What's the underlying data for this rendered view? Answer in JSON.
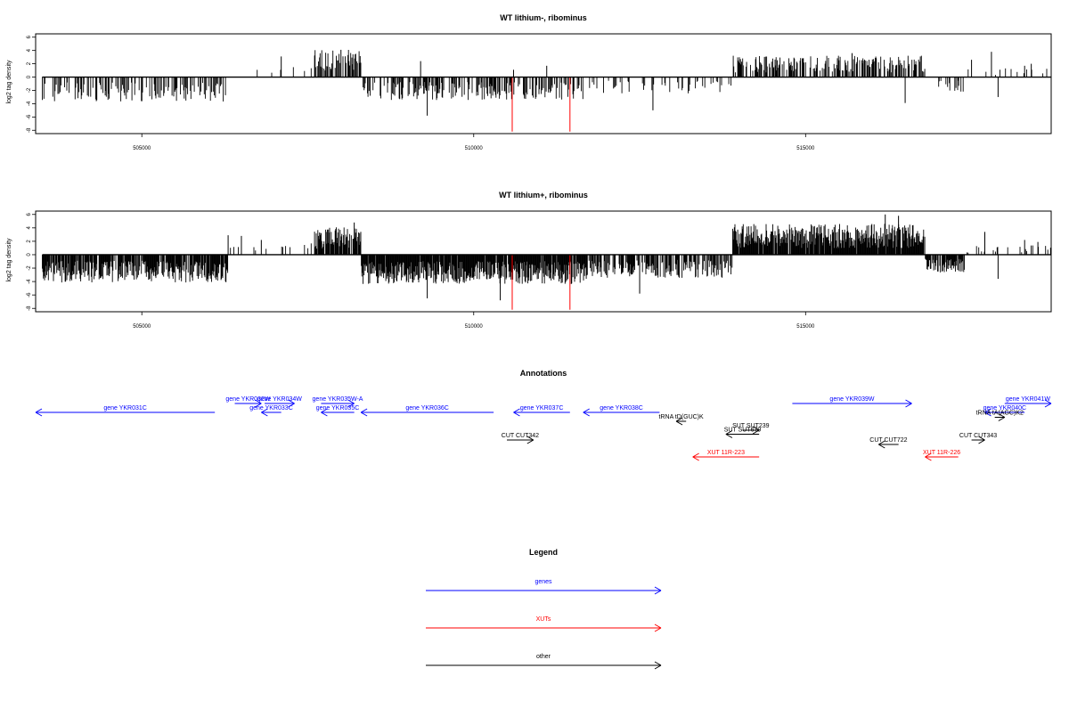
{
  "colors": {
    "gene": "#0000ff",
    "xut": "#ff0000",
    "other": "#000000",
    "highlight": "#ff0000",
    "frame": "#000000"
  },
  "chart_data": [
    {
      "type": "bar",
      "title": "WT lithium-, ribominus",
      "xlabel": "",
      "ylabel": "log2 tag density",
      "xlim": [
        503400,
        518700
      ],
      "ylim": [
        -8.5,
        6.5
      ],
      "xticks": [
        505000,
        510000,
        515000
      ],
      "yticks": [
        6,
        4,
        2,
        0,
        -2,
        -4,
        -6,
        -8
      ],
      "grid": false,
      "density": 0.62,
      "seed": 7,
      "regions": [
        {
          "x": [
            503500,
            506300
          ],
          "sign": -1,
          "mag": 3.2,
          "p": 0.55
        },
        {
          "x": [
            506300,
            507600
          ],
          "sign": 1,
          "mag": 1.5,
          "p": 0.06
        },
        {
          "x": [
            507600,
            508300
          ],
          "sign": 1,
          "mag": 3.6,
          "p": 0.8
        },
        {
          "x": [
            508300,
            511700
          ],
          "sign": -1,
          "mag": 3.0,
          "p": 0.65
        },
        {
          "x": [
            511700,
            513900
          ],
          "sign": -1,
          "mag": 2.2,
          "p": 0.28
        },
        {
          "x": [
            513900,
            516800
          ],
          "sign": 1,
          "mag": 2.8,
          "p": 0.75
        },
        {
          "x": [
            516800,
            517400
          ],
          "sign": -1,
          "mag": 2.0,
          "p": 0.35
        },
        {
          "x": [
            517400,
            518700
          ],
          "sign": 1,
          "mag": 1.2,
          "p": 0.12
        }
      ],
      "spikes": [
        {
          "x": 507100,
          "y": 3.1
        },
        {
          "x": 508000,
          "y": 4.1
        },
        {
          "x": 509200,
          "y": 2.4
        },
        {
          "x": 509300,
          "y": -5.8
        },
        {
          "x": 510600,
          "y": 1.1
        },
        {
          "x": 511100,
          "y": 1.7
        },
        {
          "x": 512700,
          "y": -5.0
        },
        {
          "x": 516500,
          "y": -3.9
        },
        {
          "x": 517500,
          "y": 2.6
        },
        {
          "x": 517800,
          "y": 3.8
        },
        {
          "x": 517900,
          "y": -3.0
        },
        {
          "x": 518300,
          "y": 1.7
        },
        {
          "x": 518400,
          "y": 2.0
        },
        {
          "x": 515700,
          "y": 3.6
        }
      ],
      "highlights": [
        {
          "x": 510580,
          "y": -8.2
        },
        {
          "x": 511450,
          "y": -8.2
        }
      ]
    },
    {
      "type": "bar",
      "title": "WT lithium+, ribominus",
      "xlabel": "",
      "ylabel": "log2 tag density",
      "xlim": [
        503400,
        518700
      ],
      "ylim": [
        -8.5,
        6.5
      ],
      "xticks": [
        505000,
        510000,
        515000
      ],
      "yticks": [
        6,
        4,
        2,
        0,
        -2,
        -4,
        -6,
        -8
      ],
      "grid": false,
      "density": 0.98,
      "seed": 23,
      "regions": [
        {
          "x": [
            503500,
            506300
          ],
          "sign": -1,
          "mag": 3.6,
          "p": 0.85
        },
        {
          "x": [
            506300,
            507600
          ],
          "sign": 1,
          "mag": 1.6,
          "p": 0.05
        },
        {
          "x": [
            507600,
            508300
          ],
          "sign": 1,
          "mag": 3.6,
          "p": 0.9
        },
        {
          "x": [
            508300,
            511700
          ],
          "sign": -1,
          "mag": 3.8,
          "p": 0.95
        },
        {
          "x": [
            511700,
            513900
          ],
          "sign": -1,
          "mag": 3.0,
          "p": 0.6
        },
        {
          "x": [
            513900,
            516800
          ],
          "sign": 1,
          "mag": 4.0,
          "p": 0.92
        },
        {
          "x": [
            516800,
            517400
          ],
          "sign": -1,
          "mag": 2.4,
          "p": 0.8
        },
        {
          "x": [
            517400,
            518700
          ],
          "sign": 1,
          "mag": 1.2,
          "p": 0.1
        }
      ],
      "spikes": [
        {
          "x": 506300,
          "y": 2.9
        },
        {
          "x": 506500,
          "y": 2.8
        },
        {
          "x": 506800,
          "y": 2.2
        },
        {
          "x": 507700,
          "y": 3.2
        },
        {
          "x": 508200,
          "y": 4.8
        },
        {
          "x": 509300,
          "y": -6.5
        },
        {
          "x": 510400,
          "y": -6.8
        },
        {
          "x": 512500,
          "y": -5.8
        },
        {
          "x": 516200,
          "y": 6.0
        },
        {
          "x": 516400,
          "y": 5.8
        },
        {
          "x": 517700,
          "y": 3.4
        },
        {
          "x": 517900,
          "y": -3.6
        },
        {
          "x": 518300,
          "y": 2.2
        },
        {
          "x": 518500,
          "y": 1.9
        }
      ],
      "highlights": [
        {
          "x": 510580,
          "y": -8.2
        },
        {
          "x": 511450,
          "y": -8.2
        }
      ]
    }
  ],
  "annotations": {
    "title": "Annotations",
    "items": [
      {
        "label": "gene YKR031C",
        "kind": "gene",
        "dir": "left",
        "start": 503400,
        "end": 506100,
        "row": 0
      },
      {
        "label": "gene YKR032W",
        "kind": "gene",
        "dir": "right",
        "start": 506400,
        "end": 506800,
        "row": -1
      },
      {
        "label": "gene YKR033C",
        "kind": "gene",
        "dir": "left",
        "start": 506800,
        "end": 507100,
        "row": 0
      },
      {
        "label": "gene YKR034W",
        "kind": "gene",
        "dir": "right",
        "start": 506850,
        "end": 507300,
        "row": -1
      },
      {
        "label": "gene YKR035W-A",
        "kind": "gene",
        "dir": "right",
        "start": 507700,
        "end": 508200,
        "row": -1
      },
      {
        "label": "gene YKR035C",
        "kind": "gene",
        "dir": "left",
        "start": 507700,
        "end": 508200,
        "row": 0
      },
      {
        "label": "gene YKR036C",
        "kind": "gene",
        "dir": "left",
        "start": 508300,
        "end": 510300,
        "row": 0
      },
      {
        "label": "gene YKR037C",
        "kind": "gene",
        "dir": "left",
        "start": 510600,
        "end": 511450,
        "row": 0
      },
      {
        "label": "gene YKR038C",
        "kind": "gene",
        "dir": "left",
        "start": 511650,
        "end": 512800,
        "row": 0
      },
      {
        "label": "gene YKR039W",
        "kind": "gene",
        "dir": "right",
        "start": 514800,
        "end": 516600,
        "row": -1
      },
      {
        "label": "gene YKR041W",
        "kind": "gene",
        "dir": "right",
        "start": 518000,
        "end": 518700,
        "row": -1
      },
      {
        "label": "gene YKR040C",
        "kind": "gene",
        "dir": "left",
        "start": 517700,
        "end": 518300,
        "row": 0
      },
      {
        "label": "tRNA tD(GUC)K",
        "kind": "other",
        "dir": "left",
        "start": 513050,
        "end": 513200,
        "row": 1
      },
      {
        "label": "tRNA tA(AGC)K2",
        "kind": "other",
        "dir": "right",
        "start": 517850,
        "end": 518000,
        "row": 0.55
      },
      {
        "label": "SUT SUT239",
        "kind": "other",
        "dir": "right",
        "start": 514050,
        "end": 514300,
        "row": 2
      },
      {
        "label": "SUT SUT679",
        "kind": "other",
        "dir": "left",
        "start": 513800,
        "end": 514300,
        "row": 2.45
      },
      {
        "label": "CUT CUT342",
        "kind": "other",
        "dir": "right",
        "start": 510500,
        "end": 510900,
        "row": 3.1
      },
      {
        "label": "CUT CUT343",
        "kind": "other",
        "dir": "right",
        "start": 517500,
        "end": 517700,
        "row": 3.1
      },
      {
        "label": "CUT CUT722",
        "kind": "other",
        "dir": "left",
        "start": 516100,
        "end": 516400,
        "row": 3.6
      },
      {
        "label": "XUT 11R-223",
        "kind": "xut",
        "dir": "left",
        "start": 513300,
        "end": 514300,
        "row": 5
      },
      {
        "label": "XUT 11R-226",
        "kind": "xut",
        "dir": "left",
        "start": 516800,
        "end": 517300,
        "row": 5
      }
    ]
  },
  "legend": {
    "title": "Legend",
    "items": [
      {
        "label": "genes",
        "kind": "gene"
      },
      {
        "label": "XUTs",
        "kind": "xut"
      },
      {
        "label": "other",
        "kind": "other"
      }
    ]
  }
}
